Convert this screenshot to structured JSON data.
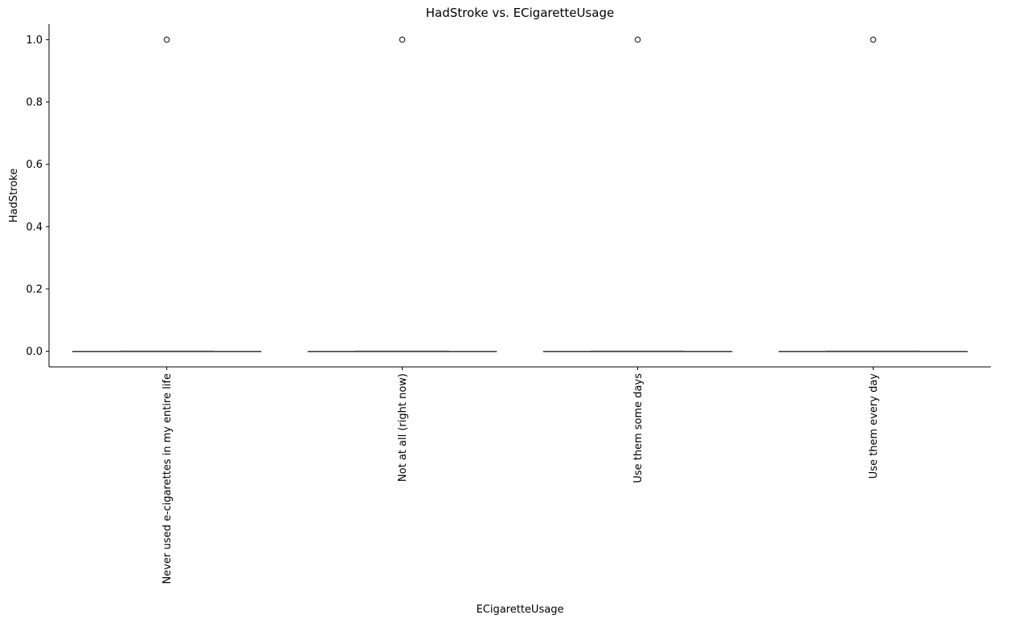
{
  "chart_data": {
    "type": "box",
    "title": "HadStroke vs. ECigaretteUsage",
    "xlabel": "ECigaretteUsage",
    "ylabel": "HadStroke",
    "categories": [
      "Never used e-cigarettes in my entire life",
      "Not at all (right now)",
      "Use them some days",
      "Use them every day"
    ],
    "boxes": [
      {
        "category": "Never used e-cigarettes in my entire life",
        "whislo": 0.0,
        "q1": 0.0,
        "median": 0.0,
        "q3": 0.0,
        "whishi": 0.0,
        "fliers": [
          1.0
        ]
      },
      {
        "category": "Not at all (right now)",
        "whislo": 0.0,
        "q1": 0.0,
        "median": 0.0,
        "q3": 0.0,
        "whishi": 0.0,
        "fliers": [
          1.0
        ]
      },
      {
        "category": "Use them some days",
        "whislo": 0.0,
        "q1": 0.0,
        "median": 0.0,
        "q3": 0.0,
        "whishi": 0.0,
        "fliers": [
          1.0
        ]
      },
      {
        "category": "Use them every day",
        "whislo": 0.0,
        "q1": 0.0,
        "median": 0.0,
        "q3": 0.0,
        "whishi": 0.0,
        "fliers": [
          1.0
        ]
      }
    ],
    "y_ticks": [
      "0.0",
      "0.2",
      "0.4",
      "0.6",
      "0.8",
      "1.0"
    ],
    "ylim": [
      -0.05,
      1.05
    ],
    "grid": false,
    "colors": {
      "box_line": "#3f3f3f",
      "flier": "#3f3f3f",
      "axis": "#000000"
    }
  }
}
